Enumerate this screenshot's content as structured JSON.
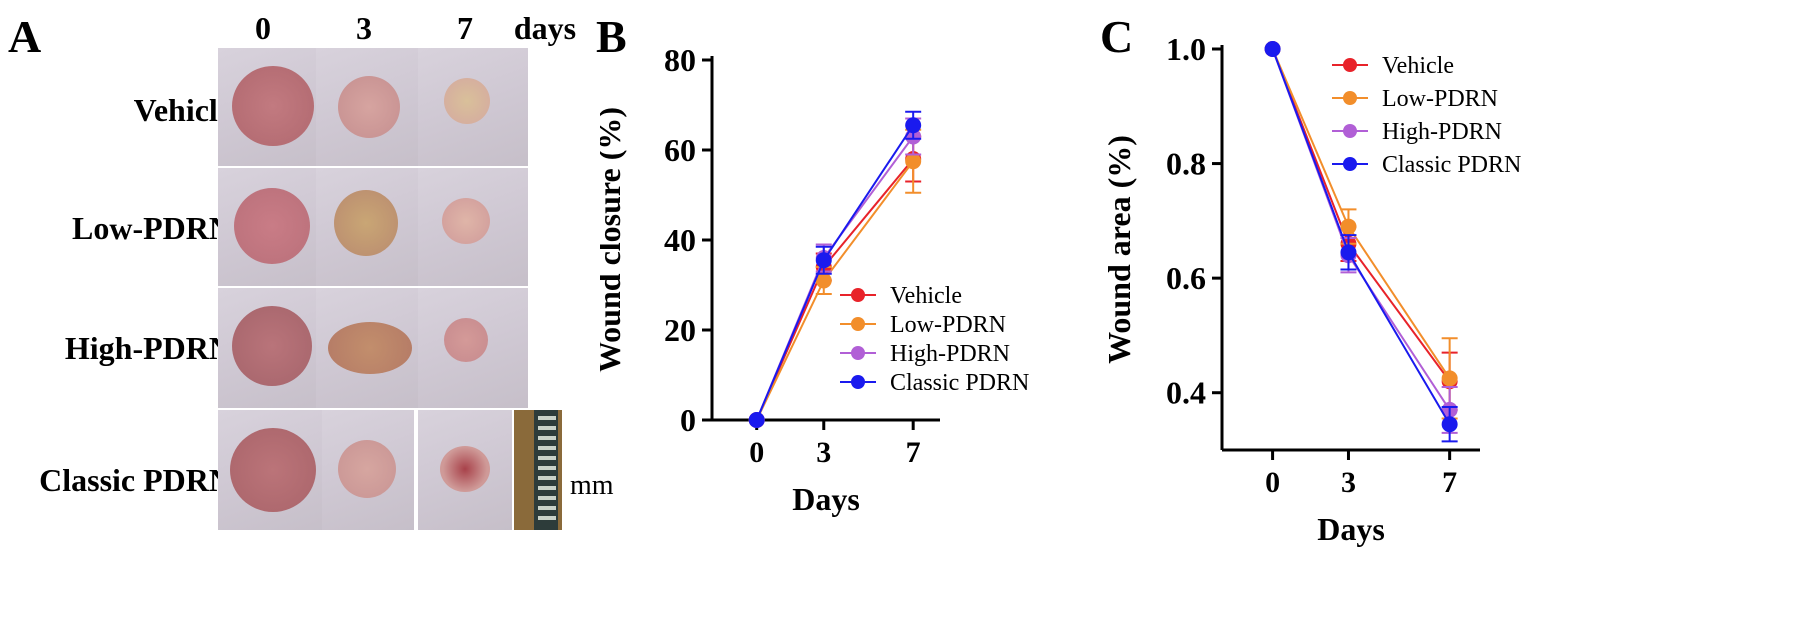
{
  "figure": {
    "panel_labels": [
      "A",
      "B",
      "C"
    ],
    "photo_panel": {
      "column_headers": [
        "0",
        "3",
        "7"
      ],
      "column_unit": "days",
      "row_labels": [
        "Vehicle",
        "Low-PDRN",
        "High-PDRN",
        "Classic PDRN"
      ],
      "scale_label": "mm"
    }
  },
  "chart_data": [
    {
      "type": "line",
      "title": "",
      "xlabel": "Days",
      "ylabel": "Wound closure (%)",
      "x": [
        0,
        3,
        7
      ],
      "ylim": [
        0,
        80
      ],
      "yticks": [
        0,
        20,
        40,
        60,
        80
      ],
      "legend_position": "center-right",
      "series": [
        {
          "name": "Vehicle",
          "color": "#e8232a",
          "values": [
            0,
            34,
            58
          ],
          "errors": [
            0,
            3,
            5
          ]
        },
        {
          "name": "Low-PDRN",
          "color": "#f28e2b",
          "values": [
            0,
            31,
            57.5
          ],
          "errors": [
            0,
            3,
            7
          ]
        },
        {
          "name": "High-PDRN",
          "color": "#b15fd6",
          "values": [
            0,
            36,
            63
          ],
          "errors": [
            0,
            3,
            4
          ]
        },
        {
          "name": "Classic PDRN",
          "color": "#1a1aee",
          "values": [
            0,
            35.5,
            65.5
          ],
          "errors": [
            0,
            3,
            3
          ]
        }
      ]
    },
    {
      "type": "line",
      "title": "",
      "xlabel": "Days",
      "ylabel": "Wound area (%)",
      "x": [
        0,
        3,
        7
      ],
      "ylim": [
        0.3,
        1.0
      ],
      "yticks": [
        0.4,
        0.6,
        0.8,
        1.0
      ],
      "legend_position": "top-right",
      "series": [
        {
          "name": "Vehicle",
          "color": "#e8232a",
          "values": [
            1.0,
            0.66,
            0.42
          ],
          "errors": [
            0,
            0.03,
            0.05
          ]
        },
        {
          "name": "Low-PDRN",
          "color": "#f28e2b",
          "values": [
            1.0,
            0.69,
            0.425
          ],
          "errors": [
            0,
            0.03,
            0.07
          ]
        },
        {
          "name": "High-PDRN",
          "color": "#b15fd6",
          "values": [
            1.0,
            0.64,
            0.37
          ],
          "errors": [
            0,
            0.03,
            0.04
          ]
        },
        {
          "name": "Classic PDRN",
          "color": "#1a1aee",
          "values": [
            1.0,
            0.645,
            0.345
          ],
          "errors": [
            0,
            0.03,
            0.03
          ]
        }
      ]
    }
  ]
}
